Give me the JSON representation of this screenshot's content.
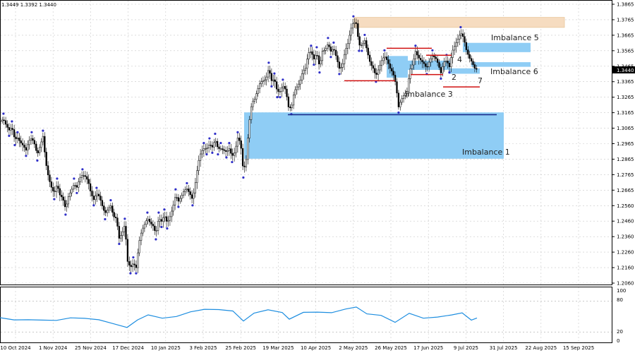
{
  "header": {
    "ohlc": "1.3449 1.3392 1.3440"
  },
  "price_tag": {
    "value": "1.3440",
    "color": "#000000"
  },
  "colors": {
    "candle": "#000000",
    "marker": "#2f2fc8",
    "imbalance": "#8fcdf5",
    "resistance_zone": "#f6dcc0",
    "level_red": "#d01010",
    "level_blue": "#1a2c8c",
    "rsi": "#1e8ee0",
    "grid": "#c8c8c8"
  },
  "annotations": {
    "imb1": "Imbalance 1",
    "imb3": "Imbalance 3",
    "imb5": "Imbalance 5",
    "imb6": "Imbalance 6",
    "n2": "2",
    "n4": "4",
    "n7": "7"
  },
  "rsi_panel": {
    "levels": [
      "100",
      "80",
      "20",
      "0"
    ]
  },
  "chart_data": {
    "type": "candlestick",
    "ylim": [
      1.206,
      1.3865
    ],
    "y_ticks": [
      "1.3865",
      "1.3765",
      "1.3665",
      "1.3565",
      "1.3465",
      "1.3365",
      "1.3265",
      "1.3165",
      "1.3065",
      "1.2965",
      "1.2865",
      "1.2765",
      "1.2665",
      "1.2560",
      "1.2460",
      "1.2360",
      "1.2260",
      "1.2160",
      "1.2060"
    ],
    "x_ticks": [
      "10 Oct 2024",
      "1 Nov 2024",
      "25 Nov 2024",
      "17 Dec 2024",
      "10 Jan 2025",
      "3 Feb 2025",
      "25 Feb 2025",
      "19 Mar 2025",
      "10 Apr 2025",
      "2 May 2025",
      "26 May 2025",
      "17 Jun 2025",
      "9 Jul 2025",
      "31 Jul 2025",
      "22 Aug 2025",
      "15 Sep 2025"
    ],
    "close_path": [
      [
        0,
        1.311
      ],
      [
        4,
        1.312
      ],
      [
        8,
        1.308
      ],
      [
        12,
        1.305
      ],
      [
        16,
        1.307
      ],
      [
        20,
        1.299
      ],
      [
        24,
        1.3
      ],
      [
        28,
        1.297
      ],
      [
        32,
        1.295
      ],
      [
        36,
        1.292
      ],
      [
        40,
        1.298
      ],
      [
        44,
        1.3
      ],
      [
        48,
        1.296
      ],
      [
        52,
        1.289
      ],
      [
        56,
        1.295
      ],
      [
        60,
        1.301
      ],
      [
        64,
        1.284
      ],
      [
        68,
        1.274
      ],
      [
        72,
        1.268
      ],
      [
        76,
        1.264
      ],
      [
        80,
        1.27
      ],
      [
        84,
        1.263
      ],
      [
        88,
        1.261
      ],
      [
        92,
        1.254
      ],
      [
        96,
        1.262
      ],
      [
        100,
        1.266
      ],
      [
        104,
        1.27
      ],
      [
        108,
        1.268
      ],
      [
        112,
        1.274
      ],
      [
        116,
        1.276
      ],
      [
        120,
        1.275
      ],
      [
        124,
        1.272
      ],
      [
        128,
        1.264
      ],
      [
        132,
        1.26
      ],
      [
        136,
        1.264
      ],
      [
        140,
        1.262
      ],
      [
        144,
        1.256
      ],
      [
        148,
        1.251
      ],
      [
        152,
        1.254
      ],
      [
        156,
        1.256
      ],
      [
        160,
        1.249
      ],
      [
        164,
        1.248
      ],
      [
        168,
        1.235
      ],
      [
        172,
        1.238
      ],
      [
        176,
        1.244
      ],
      [
        180,
        1.22
      ],
      [
        184,
        1.216
      ],
      [
        188,
        1.219
      ],
      [
        192,
        1.216
      ],
      [
        196,
        1.232
      ],
      [
        200,
        1.24
      ],
      [
        204,
        1.244
      ],
      [
        208,
        1.248
      ],
      [
        212,
        1.245
      ],
      [
        216,
        1.243
      ],
      [
        220,
        1.238
      ],
      [
        224,
        1.248
      ],
      [
        228,
        1.246
      ],
      [
        232,
        1.25
      ],
      [
        236,
        1.245
      ],
      [
        240,
        1.249
      ],
      [
        244,
        1.255
      ],
      [
        248,
        1.263
      ],
      [
        252,
        1.259
      ],
      [
        256,
        1.262
      ],
      [
        260,
        1.266
      ],
      [
        264,
        1.267
      ],
      [
        268,
        1.264
      ],
      [
        272,
        1.26
      ],
      [
        276,
        1.271
      ],
      [
        280,
        1.284
      ],
      [
        284,
        1.291
      ],
      [
        288,
        1.293
      ],
      [
        292,
        1.293
      ],
      [
        296,
        1.296
      ],
      [
        300,
        1.294
      ],
      [
        304,
        1.299
      ],
      [
        308,
        1.293
      ],
      [
        312,
        1.293
      ],
      [
        316,
        1.292
      ],
      [
        320,
        1.291
      ],
      [
        324,
        1.293
      ],
      [
        328,
        1.288
      ],
      [
        332,
        1.291
      ],
      [
        336,
        1.3
      ],
      [
        340,
        1.297
      ],
      [
        344,
        1.278
      ],
      [
        348,
        1.286
      ],
      [
        352,
        1.309
      ],
      [
        356,
        1.323
      ],
      [
        360,
        1.325
      ],
      [
        364,
        1.331
      ],
      [
        368,
        1.336
      ],
      [
        372,
        1.337
      ],
      [
        376,
        1.338
      ],
      [
        380,
        1.345
      ],
      [
        384,
        1.337
      ],
      [
        388,
        1.338
      ],
      [
        392,
        1.33
      ],
      [
        396,
        1.33
      ],
      [
        400,
        1.334
      ],
      [
        404,
        1.331
      ],
      [
        408,
        1.32
      ],
      [
        412,
        1.319
      ],
      [
        416,
        1.33
      ],
      [
        420,
        1.333
      ],
      [
        424,
        1.336
      ],
      [
        428,
        1.343
      ],
      [
        432,
        1.345
      ],
      [
        436,
        1.355
      ],
      [
        440,
        1.356
      ],
      [
        444,
        1.351
      ],
      [
        448,
        1.355
      ],
      [
        452,
        1.346
      ],
      [
        456,
        1.356
      ],
      [
        460,
        1.357
      ],
      [
        464,
        1.361
      ],
      [
        468,
        1.356
      ],
      [
        472,
        1.358
      ],
      [
        476,
        1.352
      ],
      [
        480,
        1.345
      ],
      [
        484,
        1.346
      ],
      [
        488,
        1.356
      ],
      [
        492,
        1.361
      ],
      [
        496,
        1.37
      ],
      [
        500,
        1.375
      ],
      [
        504,
        1.374
      ],
      [
        508,
        1.36
      ],
      [
        512,
        1.36
      ],
      [
        516,
        1.363
      ],
      [
        520,
        1.355
      ],
      [
        524,
        1.348
      ],
      [
        528,
        1.345
      ],
      [
        532,
        1.34
      ],
      [
        536,
        1.345
      ],
      [
        540,
        1.35
      ],
      [
        544,
        1.353
      ],
      [
        548,
        1.35
      ],
      [
        552,
        1.345
      ],
      [
        556,
        1.342
      ],
      [
        560,
        1.335
      ],
      [
        564,
        1.32
      ],
      [
        568,
        1.325
      ],
      [
        572,
        1.328
      ],
      [
        576,
        1.33
      ],
      [
        580,
        1.344
      ],
      [
        584,
        1.348
      ],
      [
        588,
        1.356
      ],
      [
        592,
        1.352
      ],
      [
        596,
        1.35
      ],
      [
        600,
        1.348
      ],
      [
        604,
        1.345
      ],
      [
        608,
        1.35
      ],
      [
        612,
        1.353
      ],
      [
        616,
        1.352
      ],
      [
        620,
        1.348
      ],
      [
        624,
        1.342
      ],
      [
        628,
        1.349
      ],
      [
        632,
        1.35
      ],
      [
        636,
        1.346
      ],
      [
        640,
        1.356
      ],
      [
        644,
        1.36
      ],
      [
        648,
        1.364
      ],
      [
        652,
        1.368
      ],
      [
        656,
        1.365
      ],
      [
        660,
        1.357
      ],
      [
        664,
        1.352
      ],
      [
        668,
        1.349
      ],
      [
        672,
        1.345
      ],
      [
        676,
        1.344
      ]
    ],
    "imbalance_zones": [
      {
        "label": "Imbalance 1",
        "x0": 346,
        "x1": 714,
        "y_top": 1.3165,
        "y_bottom": 1.2865
      },
      {
        "label": "Imbalance 5",
        "x0": 656,
        "x1": 752,
        "y_top": 1.3615,
        "y_bottom": 1.3555
      },
      {
        "label": "Imbalance 6",
        "x0": 668,
        "x1": 752,
        "y_top": 1.349,
        "y_bottom": 1.346
      },
      {
        "label": "",
        "x0": 548,
        "x1": 578,
        "y_top": 1.353,
        "y_bottom": 1.339
      },
      {
        "label": "",
        "x0": 570,
        "x1": 638,
        "y_top": 1.35,
        "y_bottom": 1.344
      },
      {
        "label": "",
        "x0": 636,
        "x1": 680,
        "y_top": 1.345,
        "y_bottom": 1.3415
      }
    ],
    "resistance_zone": {
      "x0": 502,
      "x1": 800,
      "y_top": 1.378,
      "y_bottom": 1.3715
    },
    "red_levels": [
      {
        "x0": 488,
        "x1": 560,
        "y": 1.337
      },
      {
        "x0": 548,
        "x1": 612,
        "y": 1.358
      },
      {
        "x0": 604,
        "x1": 640,
        "y": 1.3535
      },
      {
        "x0": 582,
        "x1": 628,
        "y": 1.341
      },
      {
        "x0": 628,
        "x1": 680,
        "y": 1.333
      }
    ],
    "blue_levels": [
      {
        "x0": 408,
        "x1": 704,
        "y": 1.315
      }
    ],
    "rsi": [
      [
        0,
        48
      ],
      [
        20,
        46
      ],
      [
        40,
        47
      ],
      [
        60,
        45
      ],
      [
        80,
        42
      ],
      [
        100,
        45
      ],
      [
        120,
        44
      ],
      [
        140,
        43
      ],
      [
        160,
        38
      ],
      [
        180,
        32
      ],
      [
        195,
        45
      ],
      [
        210,
        52
      ],
      [
        230,
        48
      ],
      [
        250,
        53
      ],
      [
        270,
        62
      ],
      [
        290,
        65
      ],
      [
        310,
        62
      ],
      [
        330,
        58
      ],
      [
        345,
        40
      ],
      [
        360,
        58
      ],
      [
        380,
        62
      ],
      [
        400,
        55
      ],
      [
        410,
        48
      ],
      [
        430,
        60
      ],
      [
        450,
        58
      ],
      [
        470,
        55
      ],
      [
        490,
        62
      ],
      [
        505,
        66
      ],
      [
        520,
        55
      ],
      [
        540,
        50
      ],
      [
        560,
        36
      ],
      [
        580,
        55
      ],
      [
        600,
        48
      ],
      [
        620,
        52
      ],
      [
        640,
        56
      ],
      [
        655,
        60
      ],
      [
        668,
        46
      ],
      [
        676,
        50
      ]
    ]
  }
}
